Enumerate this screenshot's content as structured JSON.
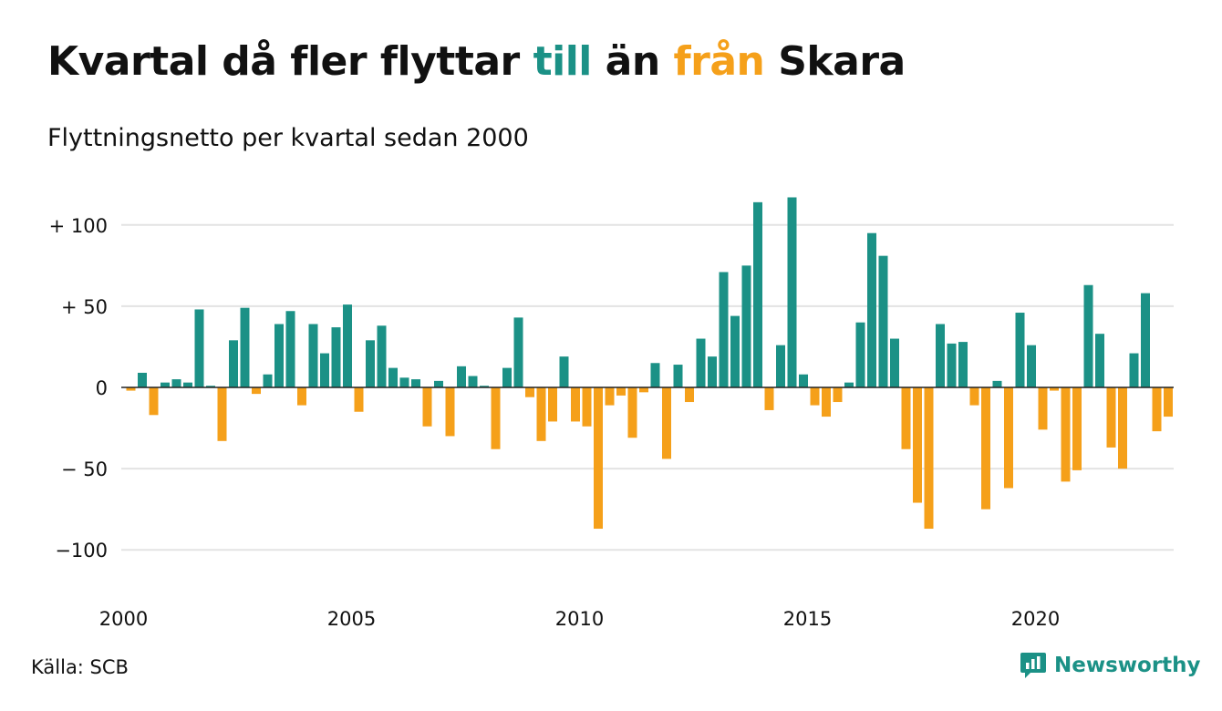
{
  "title": {
    "part1": "Kvartal då fler flyttar ",
    "till": "till",
    "part2": " än ",
    "fran": "från",
    "part3": " Skara"
  },
  "subtitle": "Flyttningsnetto per kvartal sedan 2000",
  "source": "Källa: SCB",
  "logo": {
    "text": "Newsworthy",
    "icon": "chart-bubble-icon"
  },
  "colors": {
    "positive": "#1b9186",
    "negative": "#f5a01a",
    "grid": "#e3e3e3",
    "zero": "#222222"
  },
  "chart_data": {
    "type": "bar",
    "ylim": [
      -125,
      125
    ],
    "yticks": [
      {
        "value": 100,
        "label": "+ 100"
      },
      {
        "value": 50,
        "label": "+  50"
      },
      {
        "value": 0,
        "label": "0"
      },
      {
        "value": -50,
        "label": "− 50"
      },
      {
        "value": -100,
        "label": "−100"
      }
    ],
    "xticks": [
      {
        "index": 0,
        "label": "2000"
      },
      {
        "index": 20,
        "label": "2005"
      },
      {
        "index": 40,
        "label": "2010"
      },
      {
        "index": 60,
        "label": "2015"
      },
      {
        "index": 80,
        "label": "2020"
      }
    ],
    "start": "2000 Q1",
    "values": [
      -2,
      9,
      -17,
      3,
      5,
      3,
      48,
      1,
      -33,
      29,
      49,
      -4,
      8,
      39,
      47,
      -11,
      39,
      21,
      37,
      51,
      -15,
      29,
      38,
      12,
      6,
      5,
      -24,
      4,
      -30,
      13,
      7,
      1,
      -38,
      12,
      43,
      -6,
      -33,
      -21,
      19,
      -21,
      -24,
      -87,
      -11,
      -5,
      -31,
      -3,
      15,
      -44,
      14,
      -9,
      30,
      19,
      71,
      44,
      75,
      114,
      -14,
      26,
      117,
      8,
      -11,
      -18,
      -9,
      3,
      40,
      95,
      81,
      30,
      -38,
      -71,
      -87,
      39,
      27,
      28,
      -11,
      -75,
      4,
      -62,
      46,
      26,
      -26,
      -2,
      -58,
      -51,
      63,
      33,
      -37,
      -50,
      21,
      58,
      -27,
      -18
    ]
  }
}
